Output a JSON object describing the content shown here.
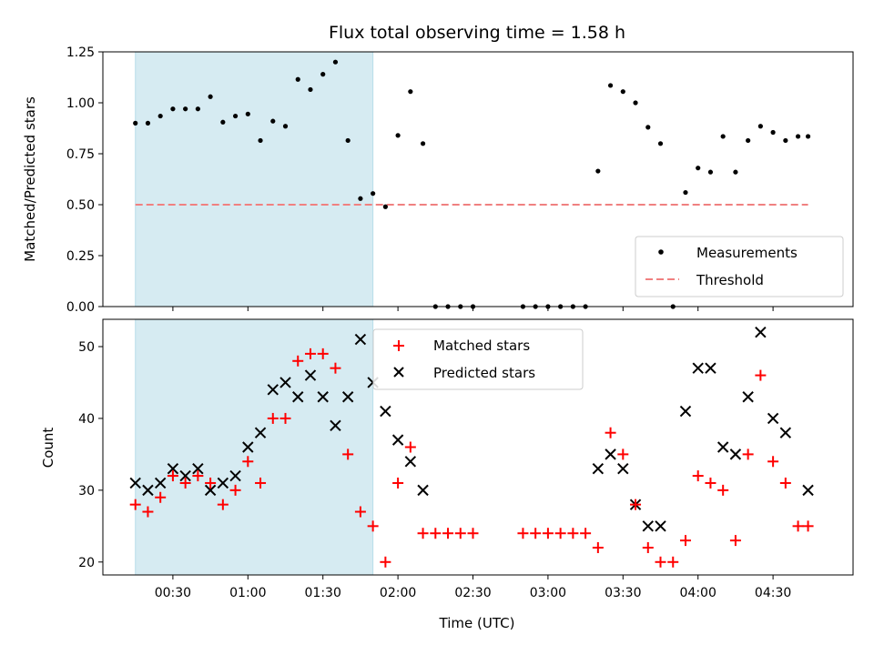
{
  "chart_data": [
    {
      "type": "scatter",
      "title": "Flux total observing time = 1.58 h",
      "xlabel": "",
      "ylabel": "Matched/Predicted stars",
      "ylim": [
        0,
        1.25
      ],
      "xlim": [
        "00:02",
        "05:02"
      ],
      "yticks": [
        "0.00",
        "0.25",
        "0.50",
        "0.75",
        "1.00",
        "1.25"
      ],
      "legend_position": "lower right",
      "shaded_interval": [
        "00:15",
        "01:50"
      ],
      "threshold": {
        "name": "Threshold",
        "value": 0.5,
        "x_range": [
          "00:15",
          "04:44"
        ],
        "color": "#f08080"
      },
      "series": [
        {
          "name": "Measurements",
          "color": "#000000",
          "x": [
            "00:15",
            "00:20",
            "00:25",
            "00:30",
            "00:35",
            "00:40",
            "00:45",
            "00:50",
            "00:55",
            "01:00",
            "01:05",
            "01:10",
            "01:15",
            "01:20",
            "01:25",
            "01:30",
            "01:35",
            "01:40",
            "01:45",
            "01:50",
            "01:55",
            "02:00",
            "02:05",
            "02:10",
            "02:15",
            "02:20",
            "02:25",
            "02:30",
            "02:50",
            "02:55",
            "03:00",
            "03:05",
            "03:10",
            "03:15",
            "03:20",
            "03:25",
            "03:30",
            "03:35",
            "03:40",
            "03:45",
            "03:50",
            "03:55",
            "04:00",
            "04:05",
            "04:10",
            "04:15",
            "04:20",
            "04:25",
            "04:30",
            "04:35",
            "04:40",
            "04:44"
          ],
          "y": [
            0.9,
            0.9,
            0.935,
            0.97,
            0.97,
            0.97,
            1.03,
            0.905,
            0.935,
            0.945,
            0.815,
            0.91,
            0.885,
            1.115,
            1.065,
            1.14,
            1.2,
            0.815,
            0.53,
            0.555,
            0.49,
            0.84,
            1.055,
            0.8,
            0.0,
            0.0,
            0.0,
            0.0,
            0.0,
            0.0,
            0.0,
            0.0,
            0.0,
            0.0,
            0.665,
            1.085,
            1.055,
            1.0,
            0.88,
            0.8,
            0.0,
            0.56,
            0.68,
            0.66,
            0.835,
            0.66,
            0.815,
            0.885,
            0.855,
            0.815,
            0.835,
            0.835
          ]
        }
      ]
    },
    {
      "type": "scatter",
      "title": "",
      "xlabel": "Time (UTC)",
      "ylabel": "Count",
      "ylim": [
        18.2,
        53.8
      ],
      "xlim": [
        "00:02",
        "05:02"
      ],
      "xticks": [
        "00:30",
        "01:00",
        "01:30",
        "02:00",
        "02:30",
        "03:00",
        "03:30",
        "04:00",
        "04:30"
      ],
      "yticks": [
        "20",
        "30",
        "40",
        "50"
      ],
      "legend_position": "upper center",
      "shaded_interval": [
        "00:15",
        "01:50"
      ],
      "series": [
        {
          "name": "Matched stars",
          "color": "#ff0000",
          "marker": "+",
          "x": [
            "00:15",
            "00:20",
            "00:25",
            "00:30",
            "00:35",
            "00:40",
            "00:45",
            "00:50",
            "00:55",
            "01:00",
            "01:05",
            "01:10",
            "01:15",
            "01:20",
            "01:25",
            "01:30",
            "01:35",
            "01:40",
            "01:45",
            "01:50",
            "01:55",
            "02:00",
            "02:05",
            "02:10",
            "02:15",
            "02:20",
            "02:25",
            "02:30",
            "02:50",
            "02:55",
            "03:00",
            "03:05",
            "03:10",
            "03:15",
            "03:20",
            "03:25",
            "03:30",
            "03:35",
            "03:40",
            "03:45",
            "03:50",
            "03:55",
            "04:00",
            "04:05",
            "04:10",
            "04:15",
            "04:20",
            "04:25",
            "04:30",
            "04:35",
            "04:40",
            "04:44"
          ],
          "y": [
            28,
            27,
            29,
            32,
            31,
            32,
            31,
            28,
            30,
            34,
            31,
            40,
            40,
            48,
            49,
            49,
            47,
            35,
            27,
            25,
            20,
            31,
            36,
            24,
            24,
            24,
            24,
            24,
            24,
            24,
            24,
            24,
            24,
            24,
            22,
            38,
            35,
            28,
            22,
            20,
            20,
            23,
            32,
            31,
            30,
            23,
            35,
            46,
            34,
            31,
            25,
            25
          ]
        },
        {
          "name": "Predicted stars",
          "color": "#000000",
          "marker": "x",
          "x": [
            "00:15",
            "00:20",
            "00:25",
            "00:30",
            "00:35",
            "00:40",
            "00:45",
            "00:50",
            "00:55",
            "01:00",
            "01:05",
            "01:10",
            "01:15",
            "01:20",
            "01:25",
            "01:30",
            "01:35",
            "01:40",
            "01:45",
            "01:50",
            "01:55",
            "02:00",
            "02:05",
            "02:10",
            "03:20",
            "03:25",
            "03:30",
            "03:35",
            "03:40",
            "03:45",
            "03:55",
            "04:00",
            "04:05",
            "04:10",
            "04:15",
            "04:20",
            "04:25",
            "04:30",
            "04:35",
            "04:44"
          ],
          "y": [
            31,
            30,
            31,
            33,
            32,
            33,
            30,
            31,
            32,
            36,
            38,
            44,
            45,
            43,
            46,
            43,
            39,
            43,
            51,
            45,
            41,
            37,
            34,
            30,
            33,
            35,
            33,
            28,
            25,
            25,
            41,
            47,
            47,
            36,
            35,
            43,
            52,
            40,
            38,
            30
          ]
        }
      ]
    }
  ]
}
